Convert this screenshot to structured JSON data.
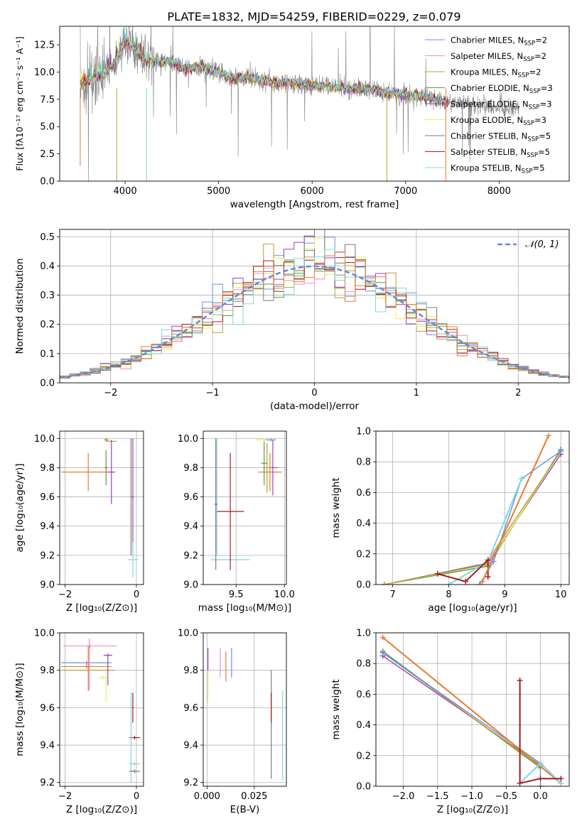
{
  "figure": {
    "title": "PLATE=1832, MJD=54259, FIBERID=0229, z=0.079"
  },
  "colors": {
    "series": [
      "#6b8fe8",
      "#e98fc6",
      "#b8a030",
      "#5a9a3c",
      "#9b3fc0",
      "#e7ee58",
      "#7a7a7a",
      "#a31f1f",
      "#7ed8de"
    ],
    "orange": "#e87a2f",
    "grid": "#b0b0b0",
    "gauss": "#5b8fd4"
  },
  "chart_data": [
    {
      "id": "spectrum",
      "type": "line",
      "xlabel": "wavelength [Angstrom, rest frame]",
      "ylabel": "Flux [fλ10⁻¹⁷ erg cm⁻² s⁻¹ A⁻¹]",
      "xlim": [
        3300,
        8750
      ],
      "ylim": [
        0,
        14.2
      ],
      "xticks": [
        4000,
        5000,
        6000,
        7000,
        8000
      ],
      "yticks": [
        0.0,
        2.5,
        5.0,
        7.5,
        10.0,
        12.5
      ],
      "grid": false,
      "legend_position": "upper-right",
      "legend": [
        {
          "label": "Chabrier MILES, N",
          "sub": "SSP",
          "suffix": "=2"
        },
        {
          "label": "Salpeter MILES, N",
          "sub": "SSP",
          "suffix": "=2"
        },
        {
          "label": "Kroupa MILES, N",
          "sub": "SSP",
          "suffix": "=2"
        },
        {
          "label": "Chabrier ELODIE, N",
          "sub": "SSP",
          "suffix": "=3"
        },
        {
          "label": "Salpeter ELODIE, N",
          "sub": "SSP",
          "suffix": "=3"
        },
        {
          "label": "Kroupa ELODIE, N",
          "sub": "SSP",
          "suffix": "=3"
        },
        {
          "label": "Chabrier STELIB, N",
          "sub": "SSP",
          "suffix": "=5"
        },
        {
          "label": "Salpeter STELIB, N",
          "sub": "SSP",
          "suffix": "=5"
        },
        {
          "label": "Kroupa STELIB, N",
          "sub": "SSP",
          "suffix": "=5"
        }
      ],
      "data_continuum": [
        [
          3520,
          8.8
        ],
        [
          3600,
          9.2
        ],
        [
          3700,
          9.6
        ],
        [
          3800,
          10.0
        ],
        [
          3900,
          11.0
        ],
        [
          3950,
          12.0
        ],
        [
          4000,
          13.0
        ],
        [
          4100,
          12.0
        ],
        [
          4200,
          11.2
        ],
        [
          4300,
          11.0
        ],
        [
          4400,
          11.0
        ],
        [
          4500,
          11.0
        ],
        [
          4600,
          10.4
        ],
        [
          4700,
          10.3
        ],
        [
          4800,
          10.5
        ],
        [
          4900,
          10.3
        ],
        [
          5000,
          10.0
        ],
        [
          5100,
          9.6
        ],
        [
          5200,
          9.3
        ],
        [
          5300,
          9.6
        ],
        [
          5400,
          9.4
        ],
        [
          5500,
          9.2
        ],
        [
          5600,
          9.0
        ],
        [
          5700,
          9.0
        ],
        [
          5800,
          9.0
        ],
        [
          5900,
          8.9
        ],
        [
          6000,
          8.8
        ],
        [
          6100,
          8.7
        ],
        [
          6200,
          8.7
        ],
        [
          6300,
          8.6
        ],
        [
          6400,
          8.5
        ],
        [
          6500,
          8.6
        ],
        [
          6600,
          8.4
        ],
        [
          6700,
          8.3
        ],
        [
          6800,
          8.1
        ],
        [
          6900,
          8.0
        ],
        [
          7000,
          7.9
        ],
        [
          7100,
          7.8
        ],
        [
          7200,
          7.8
        ],
        [
          7300,
          7.5
        ],
        [
          7400,
          7.3
        ],
        [
          7450,
          7.2
        ]
      ],
      "data_extent": [
        3520,
        8220
      ],
      "model_extent": [
        3520,
        7450
      ]
    },
    {
      "id": "residuals",
      "type": "step",
      "xlabel": "(data-model)/error",
      "ylabel": "Normed distribution",
      "xlim": [
        -2.5,
        2.5
      ],
      "ylim": [
        0,
        0.525
      ],
      "xticks": [
        -2,
        -1,
        0,
        1,
        2
      ],
      "yticks": [
        0.0,
        0.1,
        0.2,
        0.3,
        0.4,
        0.5
      ],
      "grid": true,
      "bin_width": 0.1,
      "legend_label": "𝒩(0, 1)",
      "gaussian": {
        "mean": 0,
        "sigma": 1
      }
    },
    {
      "id": "age-Z",
      "type": "errorbar",
      "xlabel": "Z [log₁₀(Z/Z⊙)]",
      "ylabel": "age  [log₁₀(age/yr)]",
      "xlim": [
        -2.15,
        0.2
      ],
      "ylim": [
        9.0,
        10.05
      ],
      "xticks": [
        -2,
        0
      ],
      "yticks": [
        9.0,
        9.2,
        9.4,
        9.6,
        9.8,
        10.0
      ],
      "grid": true,
      "points": [
        {
          "x": -1.35,
          "xerr": 0.75,
          "y": 9.77,
          "yerr": 0.13,
          "c": "orange"
        },
        {
          "x": -0.8,
          "xerr": 0.05,
          "y": 9.99,
          "yerr": 0.01,
          "c": 5
        },
        {
          "x": -0.85,
          "xerr": 0.05,
          "y": 9.99,
          "yerr": 0.01,
          "c": 3
        },
        {
          "x": -0.7,
          "xerr": 0.15,
          "y": 9.98,
          "yerr": 0.01,
          "c": 2
        },
        {
          "x": -0.85,
          "xerr": 0.05,
          "y": 9.8,
          "yerr": 0.12,
          "c": 3
        },
        {
          "x": -0.7,
          "xerr": 0.1,
          "y": 9.77,
          "yerr": 0.22,
          "c": 4
        },
        {
          "x": -0.1,
          "xerr": 0.03,
          "y": 9.6,
          "yerr": 0.4,
          "c": 4
        },
        {
          "x": -0.15,
          "xerr": 0.02,
          "y": 9.6,
          "yerr": 0.4,
          "c": 6
        },
        {
          "x": -0.1,
          "xerr": 0.15,
          "y": 9.17,
          "yerr": 0.12,
          "c": 8
        }
      ]
    },
    {
      "id": "age-mass",
      "type": "errorbar",
      "xlabel": "mass [log₁₀(M/M⊙)]",
      "ylabel": "",
      "xlim": [
        9.16,
        10.02
      ],
      "ylim": [
        9.0,
        10.05
      ],
      "xticks": [
        9.5,
        10.0
      ],
      "yticks": [
        9.0,
        9.2,
        9.4,
        9.6,
        9.8,
        10.0
      ],
      "grid": true,
      "points": [
        {
          "x": 9.85,
          "xerr": 0.12,
          "y": 9.77,
          "yerr": 0.13,
          "c": "orange"
        },
        {
          "x": 9.8,
          "xerr": 0.1,
          "y": 9.99,
          "yerr": 0.01,
          "c": 5
        },
        {
          "x": 9.86,
          "xerr": 0.05,
          "y": 9.99,
          "yerr": 0.01,
          "c": 0
        },
        {
          "x": 9.88,
          "xerr": 0.05,
          "y": 9.8,
          "yerr": 0.19,
          "c": 4
        },
        {
          "x": 9.82,
          "xerr": 0.04,
          "y": 9.8,
          "yerr": 0.17,
          "c": 2
        },
        {
          "x": 9.79,
          "xerr": 0.03,
          "y": 9.83,
          "yerr": 0.15,
          "c": 3
        },
        {
          "x": 9.44,
          "xerr": 0.2,
          "y": 9.17,
          "yerr": 0.02,
          "c": 8
        },
        {
          "x": 9.44,
          "xerr": 0.14,
          "y": 9.5,
          "yerr": 0.4,
          "c": 7
        },
        {
          "x": 9.3,
          "xerr": 0.02,
          "y": 9.6,
          "yerr": 0.4,
          "c": 8
        },
        {
          "x": 9.29,
          "xerr": 0.02,
          "y": 9.55,
          "yerr": 0.45,
          "c": 6
        }
      ]
    },
    {
      "id": "weight-age",
      "type": "line",
      "xlabel": "age  [log₁₀(age/yr)]",
      "ylabel": "mass weight",
      "xlim": [
        6.7,
        10.15
      ],
      "ylim": [
        0,
        1.0
      ],
      "xticks": [
        7,
        8,
        9,
        10
      ],
      "yticks": [
        0.0,
        0.2,
        0.4,
        0.6,
        0.8,
        1.0
      ],
      "grid": true,
      "series": [
        {
          "c": 3,
          "x": [
            6.85,
            8.7,
            10.0
          ],
          "y": [
            0.0,
            0.12,
            0.88
          ]
        },
        {
          "c": 4,
          "x": [
            6.85,
            8.7,
            10.0
          ],
          "y": [
            0.0,
            0.14,
            0.85
          ]
        },
        {
          "c": 5,
          "x": [
            6.85,
            8.7,
            10.0
          ],
          "y": [
            0.0,
            0.13,
            0.87
          ]
        },
        {
          "c": 2,
          "x": [
            6.85,
            8.65,
            10.0
          ],
          "y": [
            0.0,
            0.13,
            0.87
          ]
        },
        {
          "c": 0,
          "x": [
            8.55,
            8.8,
            9.3,
            10.0
          ],
          "y": [
            0.0,
            0.15,
            0.69,
            0.87
          ]
        },
        {
          "c": 8,
          "x": [
            8.0,
            8.7,
            9.3
          ],
          "y": [
            0.0,
            0.15,
            0.69
          ]
        },
        {
          "c": 7,
          "x": [
            7.8,
            8.3,
            8.7,
            8.7
          ],
          "y": [
            0.07,
            0.02,
            0.16,
            0.05
          ]
        },
        {
          "c": "orange",
          "x": [
            8.6,
            9.78
          ],
          "y": [
            0.02,
            0.97
          ]
        }
      ]
    },
    {
      "id": "mass-Z",
      "type": "errorbar",
      "xlabel": "Z [log₁₀(Z/Z⊙)]",
      "ylabel": "mass [log₁₀(M/M⊙)]",
      "xlim": [
        -2.15,
        0.2
      ],
      "ylim": [
        9.18,
        10.0
      ],
      "xticks": [
        -2,
        0
      ],
      "yticks": [
        9.2,
        9.4,
        9.6,
        9.8,
        10.0
      ],
      "grid": true,
      "points": [
        {
          "x": -1.3,
          "xerr": 0.75,
          "y": 9.93,
          "yerr": 0.01,
          "c": 1
        },
        {
          "x": -1.4,
          "xerr": 0.7,
          "y": 9.84,
          "yerr": 0.01,
          "c": 0
        },
        {
          "x": -1.4,
          "xerr": 0.7,
          "y": 9.82,
          "yerr": 0.01,
          "c": "orange"
        },
        {
          "x": -1.35,
          "xerr": 0.75,
          "y": 9.8,
          "yerr": 0.01,
          "c": 2
        },
        {
          "x": -1.32,
          "xerr": 0.02,
          "y": 9.83,
          "yerr": 0.14,
          "c": 1
        },
        {
          "x": -1.35,
          "xerr": 0.02,
          "y": 9.81,
          "yerr": 0.12,
          "c": "orange"
        },
        {
          "x": -0.8,
          "xerr": 0.12,
          "y": 9.88,
          "yerr": 0.01,
          "c": 4
        },
        {
          "x": -0.8,
          "xerr": 0.02,
          "y": 9.8,
          "yerr": 0.08,
          "c": 4
        },
        {
          "x": -0.85,
          "xerr": 0.02,
          "y": 9.73,
          "yerr": 0.1,
          "c": 5
        },
        {
          "x": -0.95,
          "xerr": 0.12,
          "y": 9.76,
          "yerr": 0.01,
          "c": 5
        },
        {
          "x": -0.1,
          "xerr": 0.02,
          "y": 9.6,
          "yerr": 0.08,
          "c": 7
        },
        {
          "x": -0.05,
          "xerr": 0.15,
          "y": 9.44,
          "yerr": 0.01,
          "c": 7
        },
        {
          "x": -0.05,
          "xerr": 0.15,
          "y": 9.3,
          "yerr": 0.01,
          "c": 8
        },
        {
          "x": -0.15,
          "xerr": 0.02,
          "y": 9.44,
          "yerr": 0.24,
          "c": 8
        },
        {
          "x": -0.05,
          "xerr": 0.15,
          "y": 9.26,
          "yerr": 0.01,
          "c": 6
        }
      ]
    },
    {
      "id": "mass-EBV",
      "type": "errorbar",
      "xlabel": "E(B-V)",
      "ylabel": "",
      "xlim": [
        -0.002,
        0.042
      ],
      "ylim": [
        9.18,
        10.0
      ],
      "xticks": [
        0.0,
        0.025
      ],
      "xticklabels": [
        "0.000",
        "0.025"
      ],
      "yticks": [
        9.2,
        9.4,
        9.6,
        9.8,
        10.0
      ],
      "grid": true,
      "points": [
        {
          "x": 0.0005,
          "xerr": 0,
          "y": 9.73,
          "yerr": 0.1,
          "c": 5
        },
        {
          "x": 0.0005,
          "xerr": 0,
          "y": 9.86,
          "yerr": 0.06,
          "c": 4
        },
        {
          "x": 0.007,
          "xerr": 0,
          "y": 9.84,
          "yerr": 0.08,
          "c": 1
        },
        {
          "x": 0.01,
          "xerr": 0,
          "y": 9.82,
          "yerr": 0.08,
          "c": "orange"
        },
        {
          "x": 0.013,
          "xerr": 0,
          "y": 9.84,
          "yerr": 0.08,
          "c": 0
        },
        {
          "x": 0.034,
          "xerr": 0,
          "y": 9.51,
          "yerr": 0.29,
          "c": 6
        },
        {
          "x": 0.034,
          "xerr": 0,
          "y": 9.6,
          "yerr": 0.08,
          "c": 7
        },
        {
          "x": 0.04,
          "xerr": 0,
          "y": 9.45,
          "yerr": 0.24,
          "c": 8
        }
      ]
    },
    {
      "id": "weight-Z",
      "type": "line",
      "xlabel": "Z [log₁₀(Z/Z⊙)]",
      "ylabel": "mass weight",
      "xlim": [
        -2.4,
        0.42
      ],
      "ylim": [
        0,
        1.0
      ],
      "xticks": [
        -2.0,
        -1.5,
        -1.0,
        -0.5,
        0.0
      ],
      "xticklabels": [
        "−2.0",
        "−1.5",
        "−1.0",
        "−0.5",
        "0.0"
      ],
      "yticks": [
        0.0,
        0.2,
        0.4,
        0.6,
        0.8,
        1.0
      ],
      "grid": true,
      "series": [
        {
          "c": 3,
          "x": [
            -2.3,
            0.0
          ],
          "y": [
            0.88,
            0.12
          ]
        },
        {
          "c": 4,
          "x": [
            -2.3,
            0.0
          ],
          "y": [
            0.85,
            0.14
          ]
        },
        {
          "c": 5,
          "x": [
            -2.3,
            0.0
          ],
          "y": [
            0.87,
            0.13
          ]
        },
        {
          "c": 2,
          "x": [
            -2.3,
            0.0
          ],
          "y": [
            0.87,
            0.13
          ]
        },
        {
          "c": 0,
          "x": [
            -2.3,
            0.0,
            0.0
          ],
          "y": [
            0.87,
            0.15,
            0.0
          ]
        },
        {
          "c": "orange",
          "x": [
            -2.3,
            0.3
          ],
          "y": [
            0.97,
            0.02
          ]
        },
        {
          "c": 8,
          "x": [
            -0.3,
            -0.3,
            0.0,
            0.3
          ],
          "y": [
            0.69,
            0.02,
            0.15,
            0.02
          ]
        },
        {
          "c": 7,
          "x": [
            -0.3,
            -0.3,
            0.0,
            0.3
          ],
          "y": [
            0.69,
            0.02,
            0.05,
            0.05
          ]
        }
      ]
    }
  ]
}
